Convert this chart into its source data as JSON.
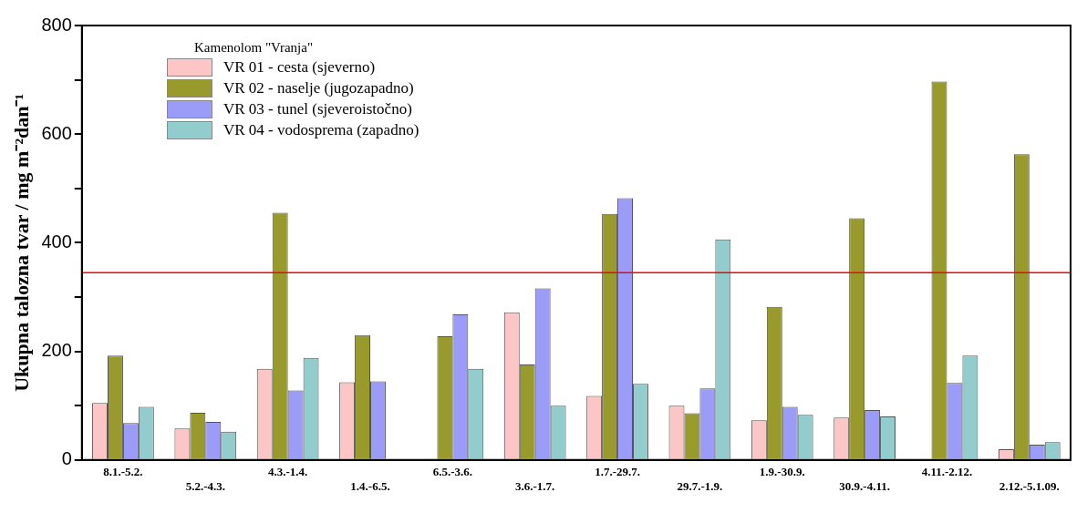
{
  "chart_data": {
    "type": "bar",
    "ylabel": "Ukupna talozna tvar / mg m⁻²dan⁻¹",
    "legend_title": "Kamenolom \"Vranja\"",
    "categories": [
      "8.1.-5.2.",
      "5.2.-4.3.",
      "4.3.-1.4.",
      "1.4.-6.5.",
      "6.5.-3.6.",
      "3.6.-1.7.",
      "1.7.-29.7.",
      "29.7.-1.9.",
      "1.9.-30.9.",
      "30.9.-4.11.",
      "4.11.-2.12.",
      "2.12.-5.1.09."
    ],
    "series": [
      {
        "name": "VR 01 - cesta (sjeverno)",
        "color": "#fcc6c6",
        "values": [
          105,
          58,
          168,
          143,
          null,
          272,
          118,
          100,
          73,
          78,
          null,
          20
        ]
      },
      {
        "name": "VR 02 - naselje (jugozapadno)",
        "color": "#999a2c",
        "values": [
          192,
          87,
          455,
          230,
          228,
          176,
          453,
          86,
          282,
          445,
          697,
          563
        ]
      },
      {
        "name": "VR 03 - tunel (sjeveroistočno)",
        "color": "#9b9bf8",
        "values": [
          68,
          70,
          128,
          145,
          268,
          316,
          482,
          132,
          98,
          92,
          142,
          28
        ]
      },
      {
        "name": "VR 04 - vodosprema (zapadno)",
        "color": "#92cccc",
        "values": [
          98,
          52,
          188,
          null,
          168,
          100,
          140,
          406,
          83,
          80,
          192,
          33
        ]
      }
    ],
    "ylim": [
      0,
      800
    ],
    "yticks": [
      0,
      {
        "value": 100,
        "label": null
      },
      200,
      {
        "value": 300,
        "label": null
      },
      400,
      {
        "value": 500,
        "label": null
      },
      600,
      {
        "value": 700,
        "label": null
      },
      800
    ],
    "ref_lines": [
      {
        "axis": "y",
        "value": 345,
        "color": "#ff0000"
      }
    ],
    "grid": false,
    "legend": "top left"
  }
}
